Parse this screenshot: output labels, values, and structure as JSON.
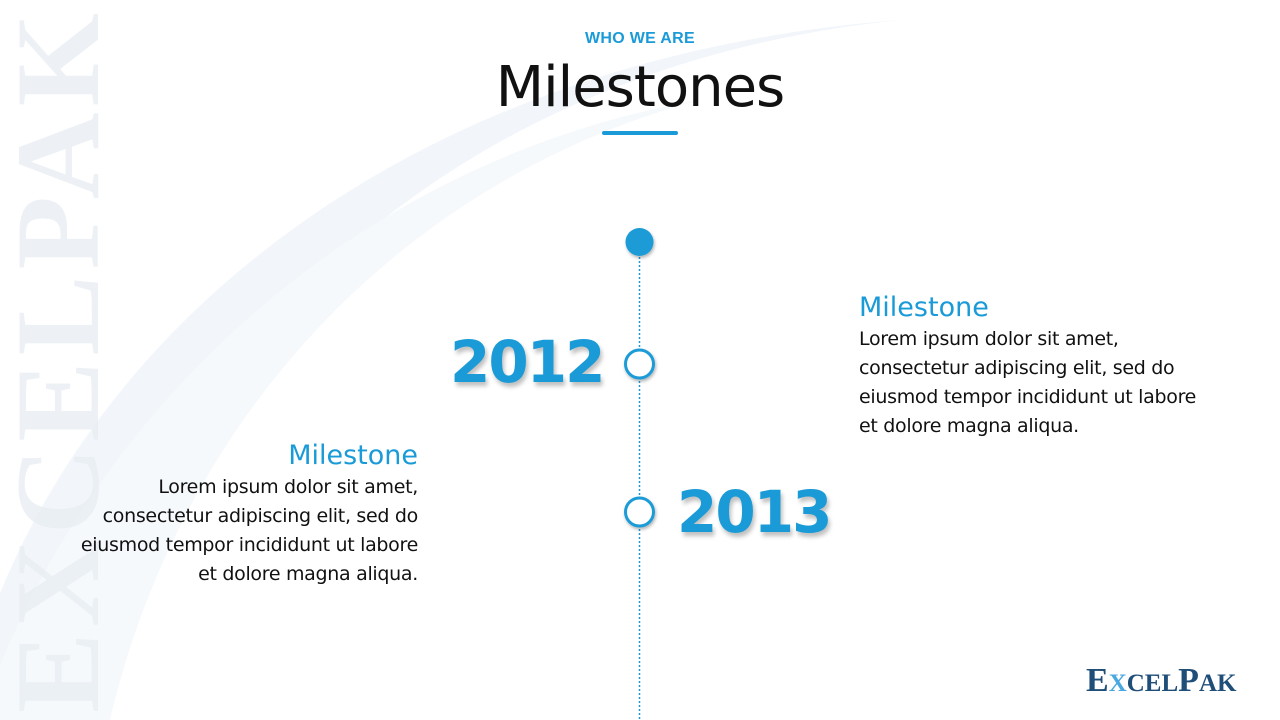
{
  "header": {
    "eyebrow": "WHO WE ARE",
    "title": "Milestones"
  },
  "watermark": {
    "text": "EXCELPAK"
  },
  "timeline": {
    "accent_color": "#1a9bd7",
    "entries": [
      {
        "year": "2012",
        "title": "Milestone",
        "body": "Lorem ipsum dolor sit amet, consectetur adipiscing elit, sed do eiusmod tempor incididunt ut labore et dolore magna aliqua."
      },
      {
        "year": "2013",
        "title": "Milestone",
        "body": "Lorem ipsum dolor sit amet, consectetur adipiscing elit, sed do eiusmod tempor incididunt ut labore et dolore magna aliqua."
      }
    ]
  },
  "logo": {
    "text": "EXCELPAK",
    "brand_color": "#1f4e79"
  }
}
